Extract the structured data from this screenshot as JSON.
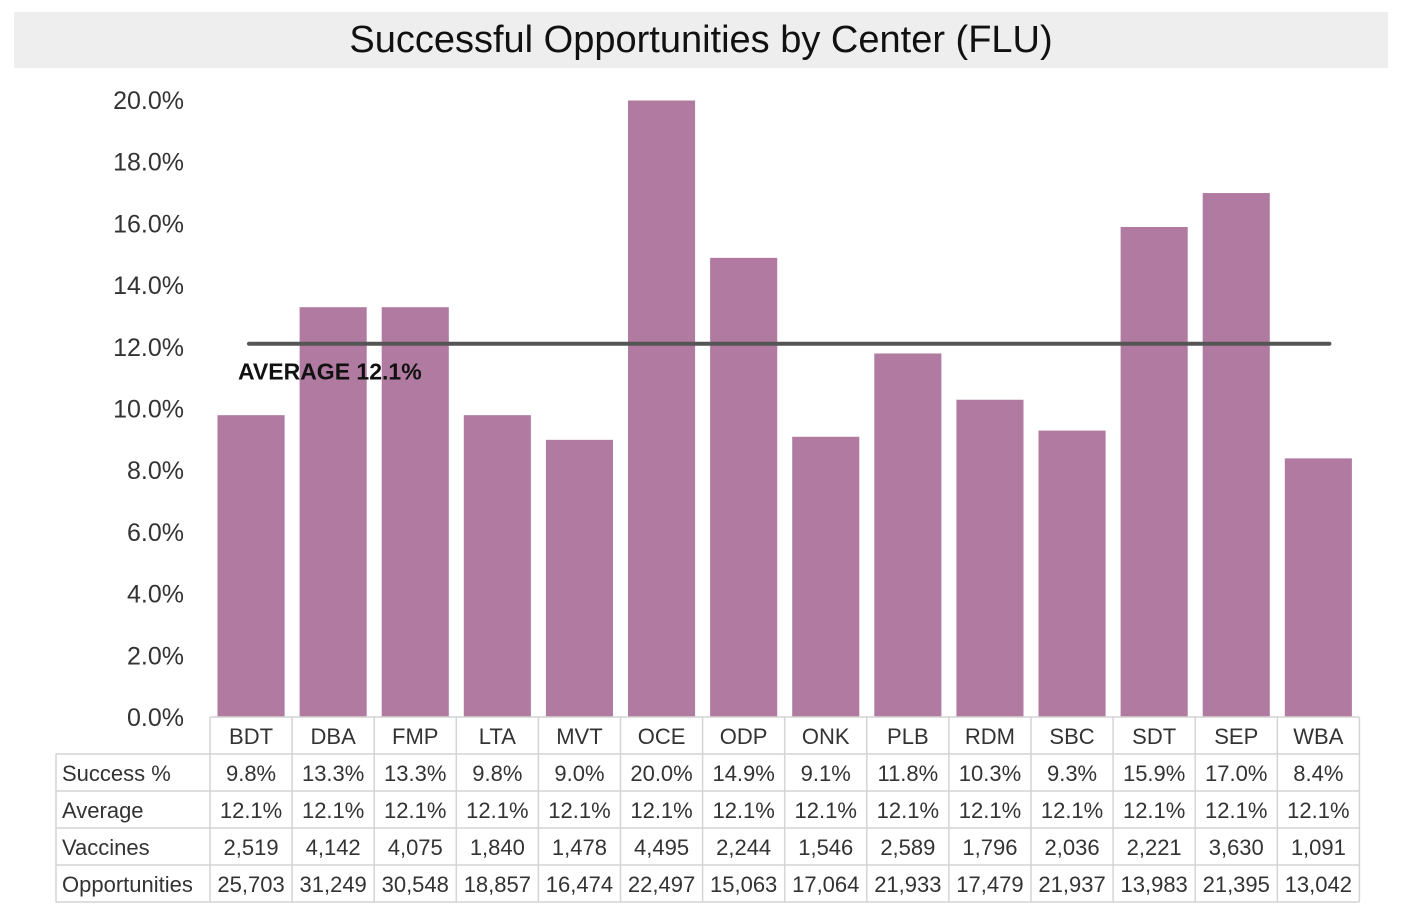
{
  "chart_data": {
    "type": "bar",
    "title": "Successful Opportunities by Center (FLU)",
    "categories": [
      "BDT",
      "DBA",
      "FMP",
      "LTA",
      "MVT",
      "OCE",
      "ODP",
      "ONK",
      "PLB",
      "RDM",
      "SBC",
      "SDT",
      "SEP",
      "WBA"
    ],
    "values": [
      9.8,
      13.3,
      13.3,
      9.8,
      9.0,
      20.0,
      14.9,
      9.1,
      11.8,
      10.3,
      9.3,
      15.9,
      17.0,
      8.4
    ],
    "ylim": [
      0,
      20
    ],
    "yticks": [
      "0.0%",
      "2.0%",
      "4.0%",
      "6.0%",
      "8.0%",
      "10.0%",
      "12.0%",
      "14.0%",
      "16.0%",
      "18.0%",
      "20.0%"
    ],
    "average": {
      "value": 12.1,
      "label": "AVERAGE 12.1%"
    },
    "bar_color": "#b07aa1",
    "average_line_color": "#555555",
    "grid": false,
    "table": {
      "rows": [
        {
          "label": "Success %",
          "values": [
            "9.8%",
            "13.3%",
            "13.3%",
            "9.8%",
            "9.0%",
            "20.0%",
            "14.9%",
            "9.1%",
            "11.8%",
            "10.3%",
            "9.3%",
            "15.9%",
            "17.0%",
            "8.4%"
          ]
        },
        {
          "label": "Average",
          "values": [
            "12.1%",
            "12.1%",
            "12.1%",
            "12.1%",
            "12.1%",
            "12.1%",
            "12.1%",
            "12.1%",
            "12.1%",
            "12.1%",
            "12.1%",
            "12.1%",
            "12.1%",
            "12.1%"
          ]
        },
        {
          "label": "Vaccines",
          "values": [
            "2,519",
            "4,142",
            "4,075",
            "1,840",
            "1,478",
            "4,495",
            "2,244",
            "1,546",
            "2,589",
            "1,796",
            "2,036",
            "2,221",
            "3,630",
            "1,091"
          ]
        },
        {
          "label": "Opportunities",
          "values": [
            "25,703",
            "31,249",
            "30,548",
            "18,857",
            "16,474",
            "22,497",
            "15,063",
            "17,064",
            "21,933",
            "17,479",
            "21,937",
            "13,983",
            "21,395",
            "13,042"
          ]
        }
      ]
    }
  }
}
